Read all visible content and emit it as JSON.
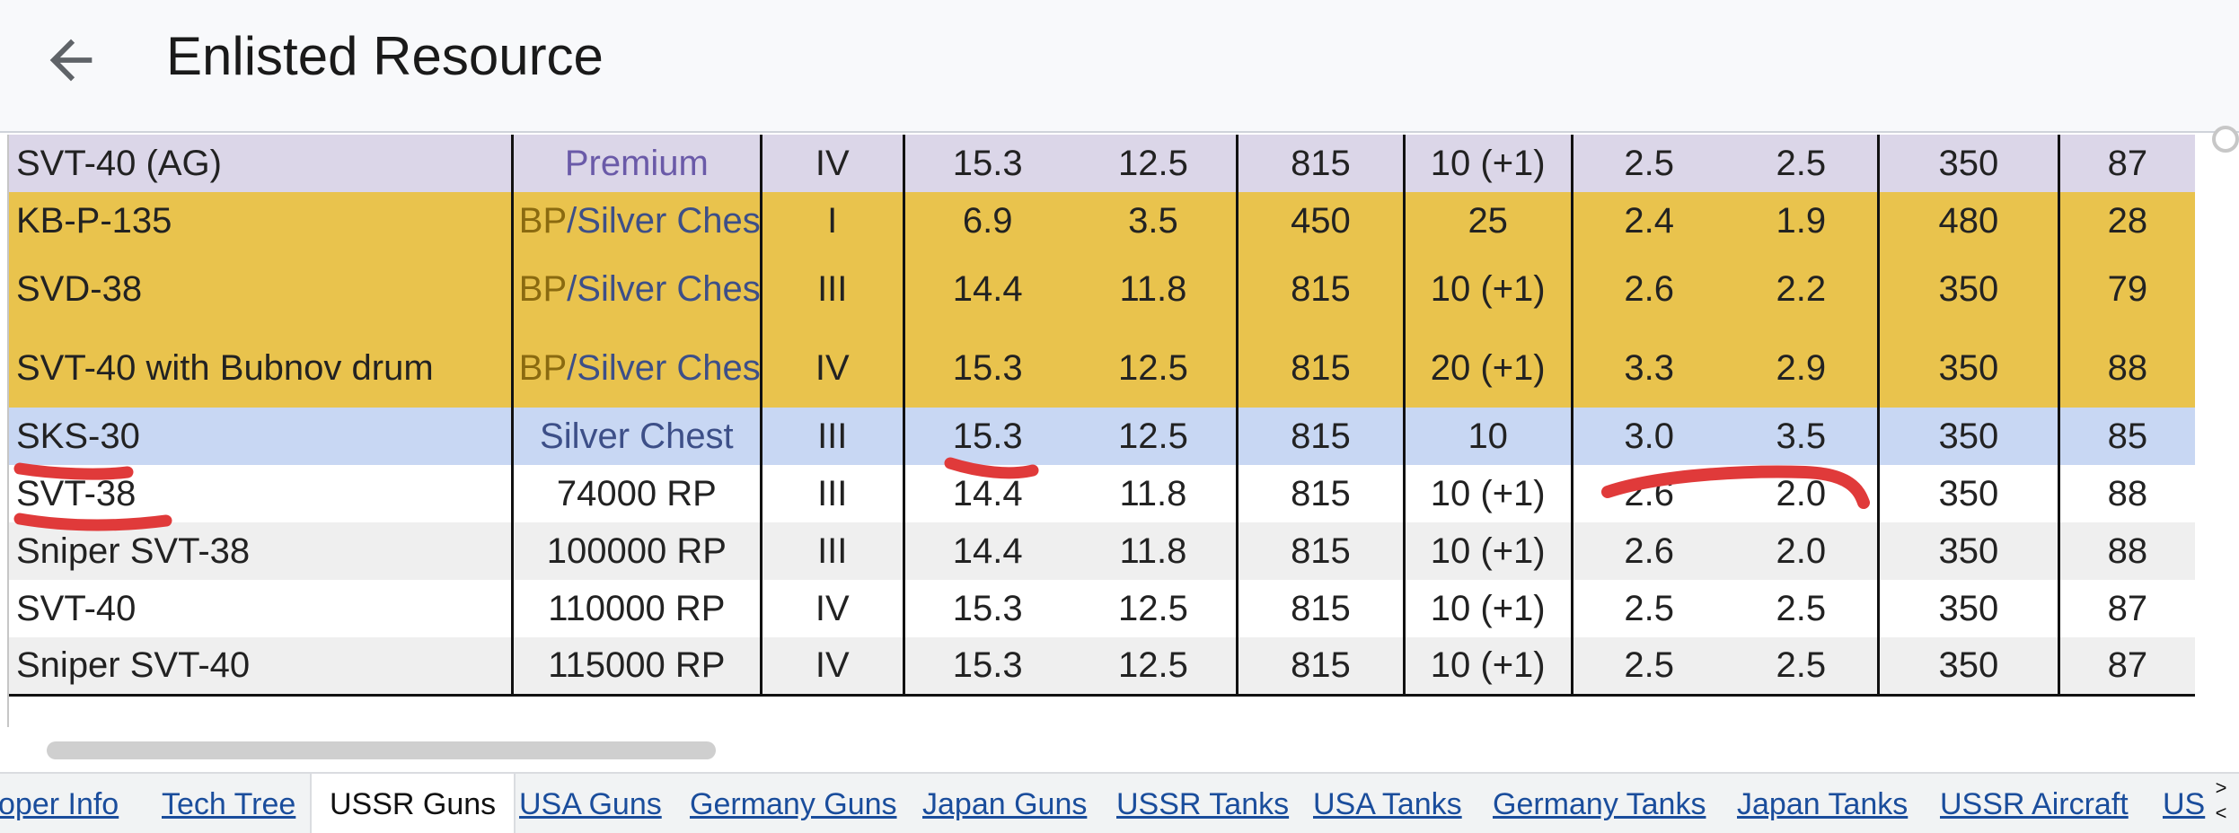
{
  "header": {
    "title": "Enlisted Resource",
    "back_icon": "arrow-left-icon"
  },
  "table": {
    "rows": [
      {
        "style": "premium",
        "name": "SVT-40 (AG)",
        "source_prefix": "",
        "source": "Premium",
        "tier": "IV",
        "c1": "15.3",
        "c2": "12.5",
        "c3": "815",
        "c4": "10 (+1)",
        "c5": "2.5",
        "c6": "2.5",
        "c7": "350",
        "c8": "87"
      },
      {
        "style": "bp",
        "name": "KB-P-135",
        "source_prefix": "BP",
        "source": "/Silver Chest",
        "tier": "I",
        "c1": "6.9",
        "c2": "3.5",
        "c3": "450",
        "c4": "25",
        "c5": "2.4",
        "c6": "1.9",
        "c7": "480",
        "c8": "28"
      },
      {
        "style": "bp",
        "name": "SVD-38",
        "source_prefix": "BP",
        "source": "/Silver Chest",
        "tier": "III",
        "c1": "14.4",
        "c2": "11.8",
        "c3": "815",
        "c4": "10 (+1)",
        "c5": "2.6",
        "c6": "2.2",
        "c7": "350",
        "c8": "79"
      },
      {
        "style": "bp",
        "name": "SVT-40 with Bubnov drum",
        "source_prefix": "BP",
        "source": "/Silver Chest",
        "tier": "IV",
        "c1": "15.3",
        "c2": "12.5",
        "c3": "815",
        "c4": "20 (+1)",
        "c5": "3.3",
        "c6": "2.9",
        "c7": "350",
        "c8": "88"
      },
      {
        "style": "silver",
        "name": "SKS-30",
        "source_prefix": "",
        "source": "Silver Chest",
        "tier": "III",
        "c1": "15.3",
        "c2": "12.5",
        "c3": "815",
        "c4": "10",
        "c5": "3.0",
        "c6": "3.5",
        "c7": "350",
        "c8": "85"
      },
      {
        "style": "white",
        "name": "SVT-38",
        "source_prefix": "",
        "source": "74000 RP",
        "tier": "III",
        "c1": "14.4",
        "c2": "11.8",
        "c3": "815",
        "c4": "10 (+1)",
        "c5": "2.6",
        "c6": "2.0",
        "c7": "350",
        "c8": "88"
      },
      {
        "style": "grey",
        "name": "Sniper SVT-38",
        "source_prefix": "",
        "source": "100000 RP",
        "tier": "III",
        "c1": "14.4",
        "c2": "11.8",
        "c3": "815",
        "c4": "10 (+1)",
        "c5": "2.6",
        "c6": "2.0",
        "c7": "350",
        "c8": "88"
      },
      {
        "style": "white",
        "name": "SVT-40",
        "source_prefix": "",
        "source": "110000 RP",
        "tier": "IV",
        "c1": "15.3",
        "c2": "12.5",
        "c3": "815",
        "c4": "10 (+1)",
        "c5": "2.5",
        "c6": "2.5",
        "c7": "350",
        "c8": "87"
      },
      {
        "style": "grey",
        "name": "Sniper SVT-40",
        "source_prefix": "",
        "source": "115000 RP",
        "tier": "IV",
        "c1": "15.3",
        "c2": "12.5",
        "c3": "815",
        "c4": "10 (+1)",
        "c5": "2.5",
        "c6": "2.5",
        "c7": "350",
        "c8": "87"
      }
    ]
  },
  "annotations": {
    "color": "#e03a3a"
  },
  "tabs": [
    {
      "label": "oper Info",
      "active": false
    },
    {
      "label": "Tech Tree",
      "active": false
    },
    {
      "label": "USSR Guns",
      "active": true
    },
    {
      "label": "USA Guns",
      "active": false
    },
    {
      "label": "Germany Guns",
      "active": false
    },
    {
      "label": "Japan Guns",
      "active": false
    },
    {
      "label": "USSR Tanks",
      "active": false
    },
    {
      "label": "USA Tanks",
      "active": false
    },
    {
      "label": "Germany Tanks",
      "active": false
    },
    {
      "label": "Japan Tanks",
      "active": false
    },
    {
      "label": "USSR Aircraft",
      "active": false
    },
    {
      "label": "US",
      "active": false
    }
  ],
  "tab_arrows": {
    "right": ">",
    "left": "<"
  }
}
